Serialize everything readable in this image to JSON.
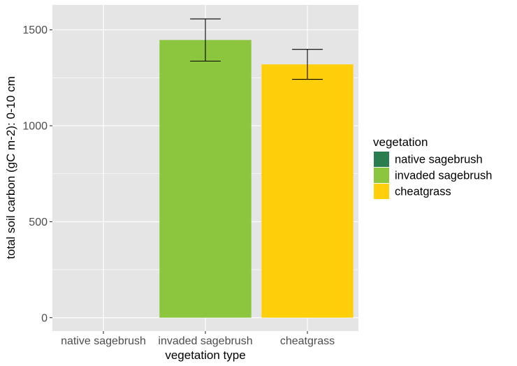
{
  "chart_data": {
    "type": "bar",
    "title": "",
    "xlabel": "vegetation type",
    "ylabel": "total soil carbon (gC m-2): 0-10 cm",
    "categories": [
      "native sagebrush",
      "invaded sagebrush",
      "cheatgrass"
    ],
    "values": [
      null,
      1447,
      1320
    ],
    "error": [
      null,
      110,
      78
    ],
    "ylim": [
      -70,
      1630
    ],
    "yticks": [
      0,
      500,
      1000,
      1500
    ],
    "grid": true,
    "legend": {
      "title": "vegetation",
      "position": "right",
      "entries": [
        {
          "label": "native sagebrush",
          "color": "#2a7d4f"
        },
        {
          "label": "invaded sagebrush",
          "color": "#8cc63f"
        },
        {
          "label": "cheatgrass",
          "color": "#ffcf0b"
        }
      ]
    },
    "colors": {
      "panel_background": "#e5e5e5",
      "grid": "#ffffff"
    }
  }
}
